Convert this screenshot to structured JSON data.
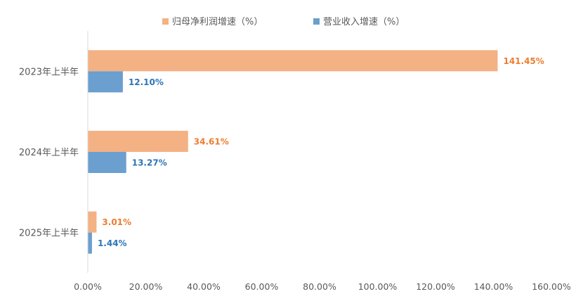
{
  "chart_data": {
    "type": "bar",
    "orientation": "horizontal",
    "categories": [
      "2023年上半年",
      "2024年上半年",
      "2025年上半年"
    ],
    "series": [
      {
        "name": "归母净利润增速（%）",
        "values": [
          141.45,
          34.61,
          3.01
        ],
        "labels": [
          "141.45%",
          "34.61%",
          "3.01%"
        ],
        "color": "#F4B183",
        "label_color": "#ED7D31"
      },
      {
        "name": "营业收入增速（%）",
        "values": [
          12.1,
          13.27,
          1.44
        ],
        "labels": [
          "12.10%",
          "13.27%",
          "1.44%"
        ],
        "color": "#6A9FCF",
        "label_color": "#2E75B6"
      }
    ],
    "xlim": [
      0,
      160
    ],
    "x_ticks": [
      "0.00%",
      "20.00%",
      "40.00%",
      "60.00%",
      "80.00%",
      "100.00%",
      "120.00%",
      "140.00%",
      "160.00%"
    ],
    "legend_position": "top",
    "grid": false,
    "axis_color": "#D9D9D9"
  }
}
